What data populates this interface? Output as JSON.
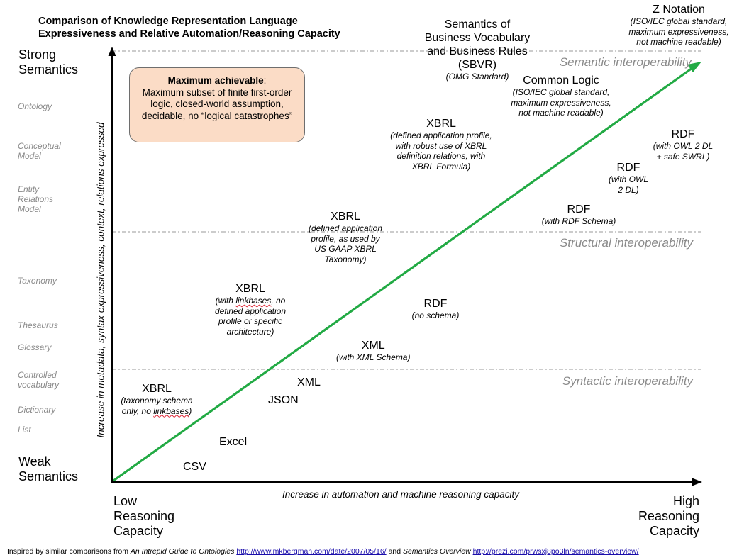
{
  "title": "Comparison of Knowledge Representation Language\nExpressiveness and Relative Automation/Reasoning Capacity",
  "y_axis": {
    "top_label": "Strong\nSemantics",
    "bottom_label": "Weak\nSemantics",
    "title": "Increase in metadata, syntax expressiveness, context, relations expressed"
  },
  "x_axis": {
    "left_label": "Low\nReasoning\nCapacity",
    "right_label": "High\nReasoning\nCapacity",
    "title": "Increase in automation and machine reasoning capacity"
  },
  "levels": [
    "Ontology",
    "Conceptual\nModel",
    "Entity\nRelations\nModel",
    "Taxonomy",
    "Thesaurus",
    "Glossary",
    "Controlled\nvocabulary",
    "Dictionary",
    "List"
  ],
  "interoperability": {
    "semantic": "Semantic interoperability",
    "structural": "Structural interoperability",
    "syntactic": "Syntactic interoperability"
  },
  "callout": {
    "heading": "Maximum achievable",
    "text": "Maximum subset of finite first-order logic, closed-world assumption, decidable, no “logical catastrophes”"
  },
  "points": {
    "csv": {
      "name": "CSV"
    },
    "excel": {
      "name": "Excel"
    },
    "json": {
      "name": "JSON"
    },
    "xml": {
      "name": "XML"
    },
    "xml_schema": {
      "name": "XML",
      "desc": "(with XML Schema)"
    },
    "xbrl_taxonomy": {
      "name": "XBRL",
      "desc_pre": "(taxonomy schema\nonly, no ",
      "desc_mark": "linkbases",
      "desc_post": ")"
    },
    "xbrl_linkbases": {
      "name": "XBRL",
      "desc_pre": "(with ",
      "desc_mark": "linkbases",
      "desc_post": ", no\ndefined application\nprofile or specific\narchitecture)"
    },
    "rdf_noschema": {
      "name": "RDF",
      "desc": "(no schema)"
    },
    "xbrl_usgaap": {
      "name": "XBRL",
      "desc": "(defined application\nprofile,  as used by\nUS GAAP XBRL\nTaxonomy)"
    },
    "rdf_schema": {
      "name": "RDF",
      "desc": "(with RDF Schema)"
    },
    "rdf_owl2": {
      "name": "RDF",
      "desc": "(with OWL\n2 DL)"
    },
    "rdf_swrl": {
      "name": "RDF",
      "desc": "(with OWL 2 DL\n+ safe SWRL)"
    },
    "xbrl_formula": {
      "name": "XBRL",
      "desc": "(defined application profile,\nwith robust use of XBRL\ndefinition relations, with\nXBRL Formula)"
    },
    "common_logic": {
      "name": "Common Logic",
      "desc": "(ISO/IEC global standard,\nmaximum expressiveness,\nnot machine readable)"
    },
    "sbvr": {
      "name": "Semantics of\nBusiness Vocabulary\nand Business Rules\n(SBVR)",
      "desc": "(OMG Standard)"
    },
    "z_notation": {
      "name": "Z Notation",
      "desc": "(ISO/IEC global standard,\nmaximum expressiveness,\nnot machine readable)"
    }
  },
  "footer": {
    "prefix": "Inspired by similar comparisons from ",
    "source1": "An Intrepid Guide to Ontologies",
    "link1": "http://www.mkbergman.com/date/2007/05/16/",
    "mid": " and ",
    "source2": "Semantics Overview",
    "link2": "http://prezi.com/prwsxj8po3ln/semantics-overview/"
  },
  "colors": {
    "trend_line": "#22aa44",
    "callout_fill": "#fbdcc6",
    "muted_text": "#8a8a8a"
  }
}
